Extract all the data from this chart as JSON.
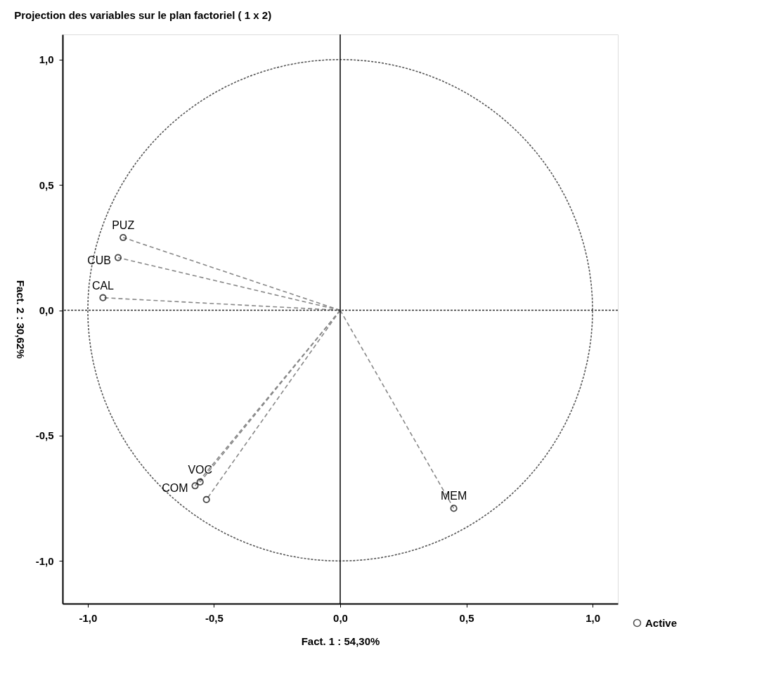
{
  "chart_data": {
    "type": "scatter",
    "title": "Projection des variables sur le plan factoriel ( 1 x  2)",
    "xlabel": "Fact. 1  : 54,30%",
    "ylabel": "Fact. 2  : 30,62%",
    "xlim": [
      -1.1,
      1.1
    ],
    "ylim": [
      -1.17,
      1.1
    ],
    "xticks": [
      {
        "value": -1,
        "label": "-1,0"
      },
      {
        "value": -0.5,
        "label": "-0,5"
      },
      {
        "value": 0,
        "label": "0,0"
      },
      {
        "value": 0.5,
        "label": "0,5"
      },
      {
        "value": 1,
        "label": "1,0"
      }
    ],
    "yticks": [
      {
        "value": -1,
        "label": "-1,0"
      },
      {
        "value": -0.5,
        "label": "-0,5"
      },
      {
        "value": 0,
        "label": "0,0"
      },
      {
        "value": 0.5,
        "label": "0,5"
      },
      {
        "value": 1,
        "label": "1,0"
      }
    ],
    "grid": false,
    "legend": "bottom right",
    "series": [
      {
        "type": "line",
        "color": "#888888",
        "line_style": "dashed",
        "marker": "none",
        "x": [
          0,
          -0.86
        ],
        "values": [
          0,
          0.29
        ]
      },
      {
        "type": "line",
        "color": "#888888",
        "line_style": "dashed",
        "marker": "none",
        "x": [
          0,
          -0.88
        ],
        "values": [
          0,
          0.21
        ]
      },
      {
        "type": "line",
        "color": "#888888",
        "line_style": "dashed",
        "marker": "none",
        "x": [
          0,
          -0.94
        ],
        "values": [
          0,
          0.05
        ]
      },
      {
        "type": "line",
        "color": "#888888",
        "line_style": "dashed",
        "marker": "none",
        "x": [
          0,
          -0.555
        ],
        "values": [
          0,
          -0.685
        ]
      },
      {
        "type": "line",
        "color": "#888888",
        "line_style": "dashed",
        "marker": "none",
        "x": [
          0,
          -0.575
        ],
        "values": [
          0,
          -0.7
        ]
      },
      {
        "type": "line",
        "color": "#888888",
        "line_style": "dashed",
        "marker": "none",
        "x": [
          0,
          -0.53
        ],
        "values": [
          0,
          -0.755
        ]
      },
      {
        "type": "line",
        "color": "#888888",
        "line_style": "dashed",
        "marker": "none",
        "x": [
          0,
          0.45
        ],
        "values": [
          0,
          -0.79
        ]
      },
      {
        "name": "Active",
        "color": "#000000",
        "marker": "circle",
        "x": [
          -0.86,
          -0.88,
          -0.94,
          -0.555,
          -0.575,
          -0.53,
          0.45
        ],
        "values": [
          0.29,
          0.21,
          0.05,
          -0.685,
          -0.7,
          -0.755,
          -0.79
        ]
      }
    ],
    "ref_lines": [
      {
        "axis": "x",
        "value": 0,
        "color": "#000000",
        "line_style": "solid"
      },
      {
        "axis": "y",
        "value": 0,
        "color": "#333333",
        "line_style": "dotted"
      }
    ],
    "annotations": [
      {
        "text": "PUZ",
        "x": -0.86,
        "y": 0.29
      },
      {
        "text": "CUB",
        "x": -0.88,
        "y": 0.21
      },
      {
        "text": "CAL",
        "x": -0.94,
        "y": 0.05
      },
      {
        "text": "VOC",
        "x": -0.555,
        "y": -0.685
      },
      {
        "text": "COM",
        "x": -0.575,
        "y": -0.7
      },
      {
        "text": "MEM",
        "x": 0.45,
        "y": -0.79
      }
    ]
  }
}
